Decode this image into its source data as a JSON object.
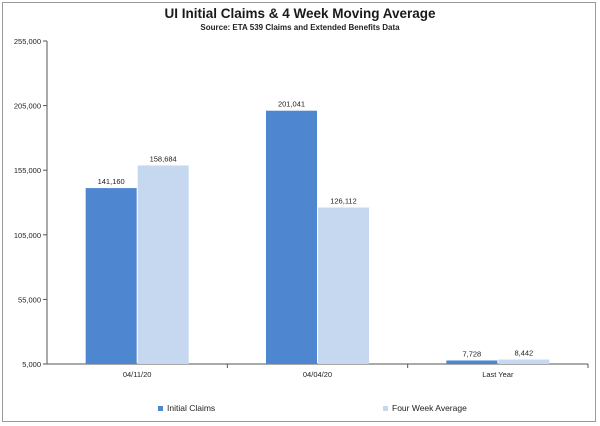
{
  "chart_data": {
    "type": "bar",
    "title": "UI Initial Claims &  4 Week Moving Average",
    "subtitle": "Source: ETA 539 Claims and Extended Benefits Data",
    "categories": [
      "04/11/20",
      "04/04/20",
      "Last Year"
    ],
    "series": [
      {
        "name": "Initial Claims",
        "values": [
          141160,
          201041,
          7728
        ],
        "labels": [
          "141,160",
          "201,041",
          "7,728"
        ],
        "color": "#4f86d0"
      },
      {
        "name": "Four Week Average",
        "values": [
          158684,
          126112,
          8442
        ],
        "labels": [
          "158,684",
          "126,112",
          "8,442"
        ],
        "color": "#c5d8f0"
      }
    ],
    "yticks": [
      5000,
      55000,
      105000,
      155000,
      205000,
      255000
    ],
    "ytick_labels": [
      "5,000",
      "55,000",
      "105,000",
      "155,000",
      "205,000",
      "255,000"
    ],
    "ylim": [
      5000,
      255000
    ],
    "xlabel": "",
    "ylabel": "",
    "legend_position": "bottom",
    "grid": false
  }
}
